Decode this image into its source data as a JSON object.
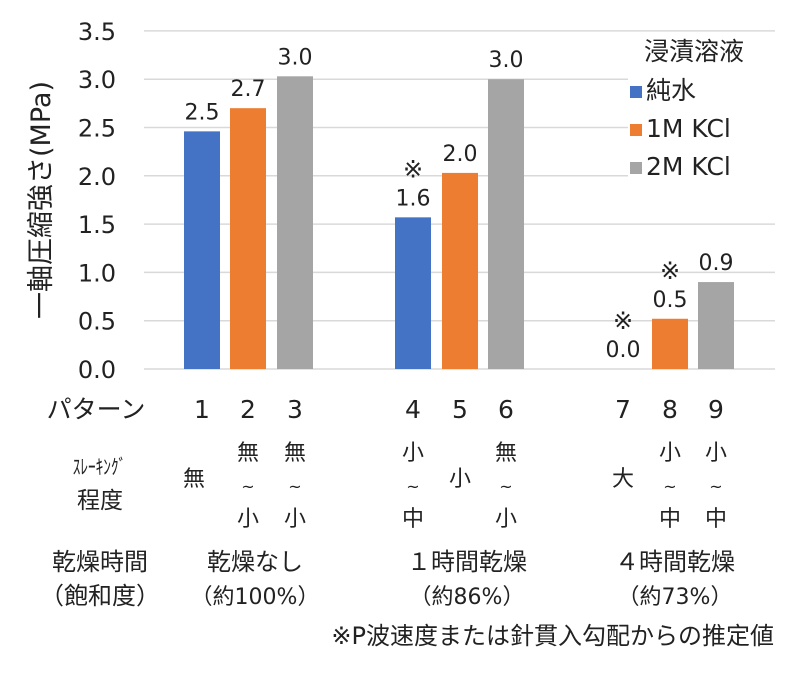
{
  "chart_data": {
    "type": "bar",
    "title": "",
    "ylabel": "一軸圧縮強さ(MPa)",
    "ylim": [
      0,
      3.5
    ],
    "yticks": [
      "0.0",
      "0.5",
      "1.0",
      "1.5",
      "2.0",
      "2.5",
      "3.0",
      "3.5"
    ],
    "grid": true,
    "legend": {
      "title": "浸漬溶液",
      "placement": "top-right"
    },
    "series": [
      {
        "name": "純水",
        "color": "#4472C4"
      },
      {
        "name": "1M KCl",
        "color": "#ED7D31"
      },
      {
        "name": "2M KCl",
        "color": "#A5A5A5"
      }
    ],
    "bars": [
      {
        "pattern": "1",
        "series": 0,
        "value": 2.46,
        "label": "2.5",
        "estimated": false,
        "slaking": [
          "無"
        ]
      },
      {
        "pattern": "2",
        "series": 1,
        "value": 2.7,
        "label": "2.7",
        "estimated": false,
        "slaking": [
          "無",
          "~",
          "小"
        ]
      },
      {
        "pattern": "3",
        "series": 2,
        "value": 3.03,
        "label": "3.0",
        "estimated": false,
        "slaking": [
          "無",
          "~",
          "小"
        ]
      },
      {
        "pattern": "4",
        "series": 0,
        "value": 1.57,
        "label": "1.6",
        "estimated": true,
        "slaking": [
          "小",
          "~",
          "中"
        ]
      },
      {
        "pattern": "5",
        "series": 1,
        "value": 2.03,
        "label": "2.0",
        "estimated": false,
        "slaking": [
          "小"
        ]
      },
      {
        "pattern": "6",
        "series": 2,
        "value": 3.0,
        "label": "3.0",
        "estimated": false,
        "slaking": [
          "無",
          "~",
          "小"
        ]
      },
      {
        "pattern": "7",
        "series": 0,
        "value": 0.0,
        "label": "0.0",
        "estimated": true,
        "slaking": [
          "大"
        ]
      },
      {
        "pattern": "8",
        "series": 1,
        "value": 0.52,
        "label": "0.5",
        "estimated": true,
        "slaking": [
          "小",
          "~",
          "中"
        ]
      },
      {
        "pattern": "9",
        "series": 2,
        "value": 0.9,
        "label": "0.9",
        "estimated": false,
        "slaking": [
          "小",
          "~",
          "中"
        ]
      }
    ],
    "estimate_mark": "※",
    "row_labels": {
      "pattern": "パターン",
      "slaking": [
        "ｽﾚｰｷﾝｸﾞ",
        "程度"
      ],
      "drying": [
        "乾燥時間",
        "（飽和度）"
      ]
    },
    "groups": [
      {
        "drying": "乾燥なし",
        "saturation": "（約100%）"
      },
      {
        "drying": "１時間乾燥",
        "saturation": "（約86%）"
      },
      {
        "drying": "４時間乾燥",
        "saturation": "（約73%）"
      }
    ],
    "footnote": "※P波速度または針貫入勾配からの推定値"
  }
}
